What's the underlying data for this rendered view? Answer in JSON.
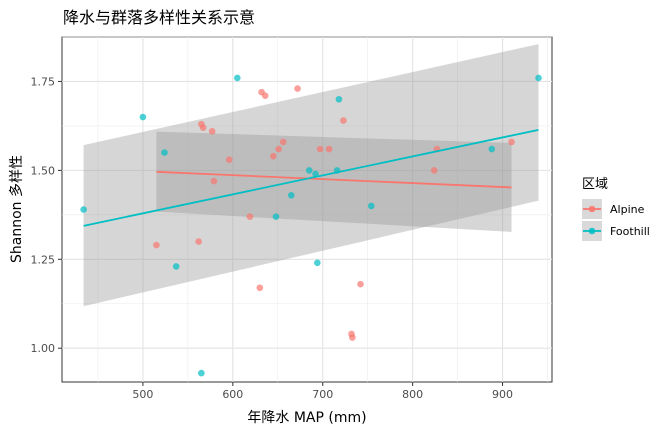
{
  "chart_data": {
    "type": "scatter",
    "title": "降水与群落多样性关系示意",
    "xlabel": "年降水 MAP (mm)",
    "ylabel": "Shannon 多样性",
    "xlim": [
      410,
      955
    ],
    "ylim": [
      0.905,
      1.875
    ],
    "x_ticks": [
      500,
      600,
      700,
      800,
      900
    ],
    "y_ticks": [
      1.0,
      1.25,
      1.5,
      1.75
    ],
    "x_tick_labels": [
      "500",
      "600",
      "700",
      "800",
      "900"
    ],
    "y_tick_labels": [
      "1.00",
      "1.25",
      "1.50",
      "1.75"
    ],
    "grid": true,
    "legend": {
      "title": "区域",
      "position": "right"
    },
    "colors": {
      "Alpine": "#F8766D",
      "Foothill": "#00BFC4"
    },
    "series": [
      {
        "name": "Alpine",
        "points": [
          [
            515,
            1.29
          ],
          [
            562,
            1.3
          ],
          [
            565,
            1.63
          ],
          [
            567,
            1.62
          ],
          [
            577,
            1.61
          ],
          [
            579,
            1.47
          ],
          [
            596,
            1.53
          ],
          [
            619,
            1.37
          ],
          [
            630,
            1.17
          ],
          [
            632,
            1.72
          ],
          [
            636,
            1.71
          ],
          [
            645,
            1.54
          ],
          [
            651,
            1.56
          ],
          [
            656,
            1.58
          ],
          [
            672,
            1.73
          ],
          [
            697,
            1.56
          ],
          [
            707,
            1.56
          ],
          [
            723,
            1.64
          ],
          [
            732,
            1.04
          ],
          [
            733,
            1.03
          ],
          [
            742,
            1.18
          ],
          [
            824,
            1.5
          ],
          [
            827,
            1.56
          ],
          [
            910,
            1.58
          ]
        ],
        "fit": {
          "x": [
            515,
            910
          ],
          "y": [
            1.496,
            1.452
          ],
          "ci_low": [
            1.384,
            1.327
          ],
          "ci_high": [
            1.609,
            1.577
          ]
        }
      },
      {
        "name": "Foothill",
        "points": [
          [
            434,
            1.39
          ],
          [
            500,
            1.65
          ],
          [
            524,
            1.55
          ],
          [
            537,
            1.23
          ],
          [
            565,
            0.93
          ],
          [
            605,
            1.76
          ],
          [
            648,
            1.37
          ],
          [
            665,
            1.43
          ],
          [
            685,
            1.5
          ],
          [
            692,
            1.49
          ],
          [
            694,
            1.24
          ],
          [
            716,
            1.5
          ],
          [
            718,
            1.7
          ],
          [
            754,
            1.4
          ],
          [
            888,
            1.56
          ],
          [
            940,
            1.76
          ]
        ],
        "fit": {
          "x": [
            434,
            940
          ],
          "y": [
            1.344,
            1.614
          ],
          "ci_low": [
            1.118,
            1.415
          ],
          "ci_high": [
            1.571,
            1.855
          ]
        }
      }
    ]
  }
}
